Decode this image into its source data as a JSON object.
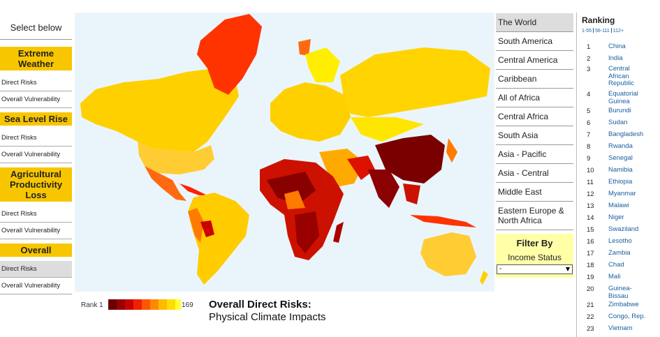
{
  "sidebar": {
    "prompt": "Select below",
    "sections": [
      {
        "title": "Extreme Weather",
        "items": [
          "Direct Risks",
          "Overall Vulnerability"
        ]
      },
      {
        "title": "Sea Level Rise",
        "items": [
          "Direct Risks",
          "Overall Vulnerability"
        ]
      },
      {
        "title": "Agricultural Productivity Loss",
        "items": [
          "Direct Risks",
          "Overall Vulnerability"
        ]
      },
      {
        "title": "Overall",
        "items": [
          "Direct Risks",
          "Overall Vulnerability"
        ]
      }
    ]
  },
  "regions": [
    "The World",
    "South America",
    "Central America",
    "Caribbean",
    "All of Africa",
    "Central Africa",
    "South Asia",
    "Asia - Pacific",
    "Asia - Central",
    "Middle East",
    "Eastern Europe & North Africa"
  ],
  "filter": {
    "title": "Filter By",
    "label": "Income Status",
    "selected": "-"
  },
  "legend": {
    "start": "Rank 1",
    "end": "169"
  },
  "map_caption": {
    "title": "Overall Direct Risks:",
    "subtitle": "Physical Climate Impacts"
  },
  "ranking": {
    "title": "Ranking",
    "pages": [
      "1-55",
      "56-111",
      "112+"
    ],
    "rows": [
      [
        1,
        "China"
      ],
      [
        2,
        "India"
      ],
      [
        3,
        "Central African Republic"
      ],
      [
        4,
        "Equatorial Guinea"
      ],
      [
        5,
        "Burundi"
      ],
      [
        6,
        "Sudan"
      ],
      [
        7,
        "Bangladesh"
      ],
      [
        8,
        "Rwanda"
      ],
      [
        9,
        "Senegal"
      ],
      [
        10,
        "Namibia"
      ],
      [
        11,
        "Ethiopia"
      ],
      [
        12,
        "Myanmar"
      ],
      [
        13,
        "Malawi"
      ],
      [
        14,
        "Niger"
      ],
      [
        15,
        "Swaziland"
      ],
      [
        16,
        "Lesotho"
      ],
      [
        17,
        "Zambia"
      ],
      [
        18,
        "Chad"
      ],
      [
        19,
        "Mali"
      ],
      [
        20,
        "Guinea-Bissau"
      ],
      [
        21,
        "Zimbabwe"
      ],
      [
        22,
        "Congo, Rep."
      ],
      [
        23,
        "Vietnam"
      ]
    ]
  }
}
